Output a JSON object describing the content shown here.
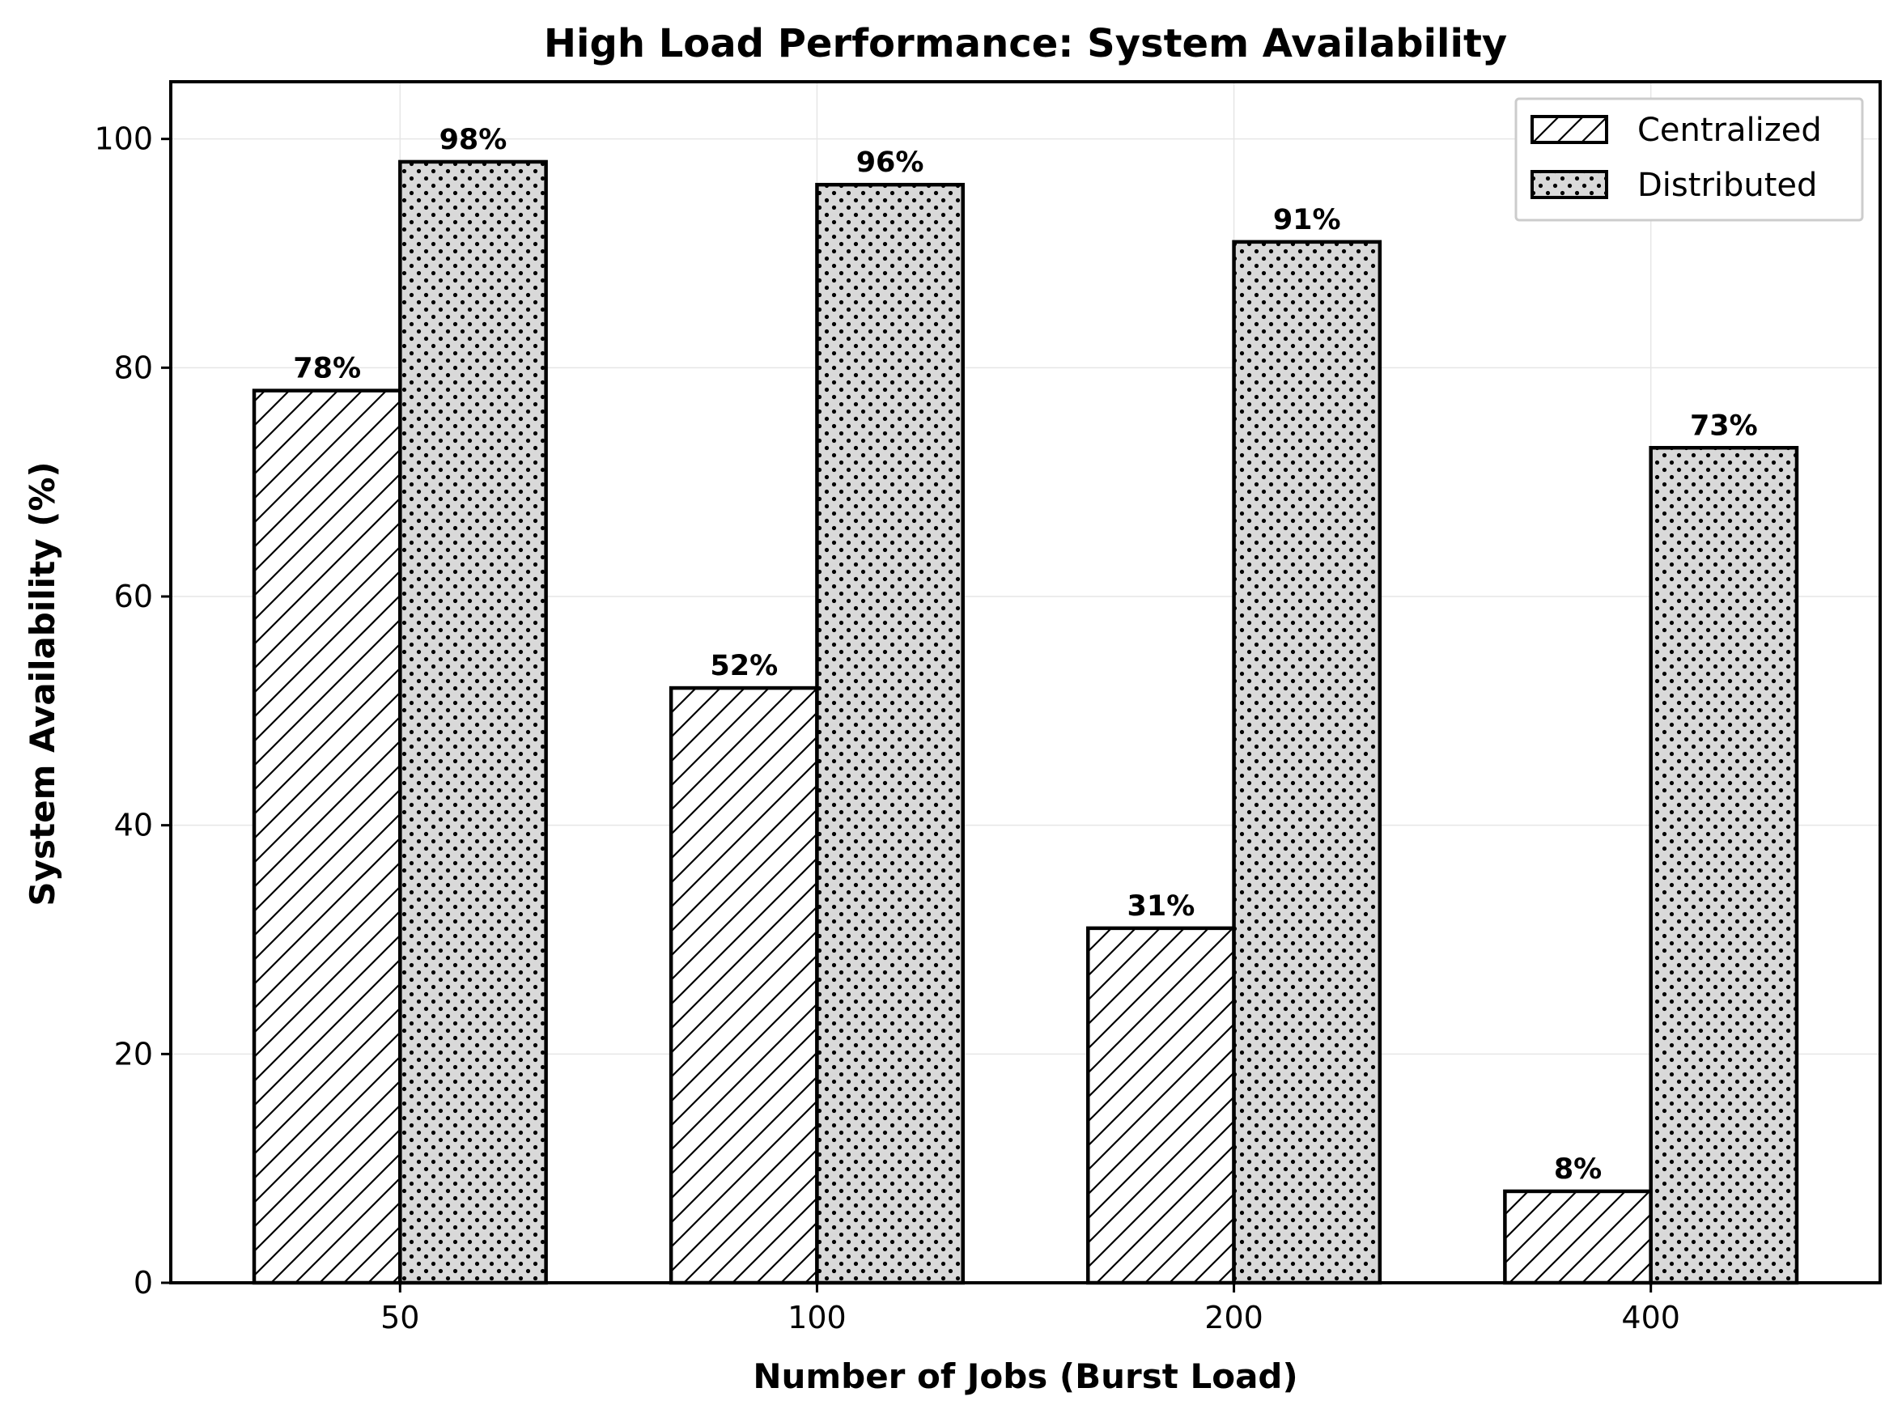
{
  "chart_data": {
    "type": "bar",
    "title": "High Load Performance: System Availability",
    "xlabel": "Number of Jobs (Burst Load)",
    "ylabel": "System Availability (%)",
    "categories": [
      "50",
      "100",
      "200",
      "400"
    ],
    "series": [
      {
        "name": "Centralized",
        "values": [
          78,
          52,
          31,
          8
        ],
        "labels": [
          "78%",
          "52%",
          "31%",
          "8%"
        ],
        "pattern": "diagonal-hatch",
        "fill": "#ffffff"
      },
      {
        "name": "Distributed",
        "values": [
          98,
          96,
          91,
          73
        ],
        "labels": [
          "98%",
          "96%",
          "91%",
          "73%"
        ],
        "pattern": "dots",
        "fill": "#d9d9d9"
      }
    ],
    "ylim": [
      0,
      105
    ],
    "yticks": [
      0,
      20,
      40,
      60,
      80,
      100
    ],
    "grid": true,
    "legend_position": "top-right",
    "colors": {
      "edge": "#000000",
      "grid": "#e6e6e6",
      "background": "#ffffff"
    }
  }
}
